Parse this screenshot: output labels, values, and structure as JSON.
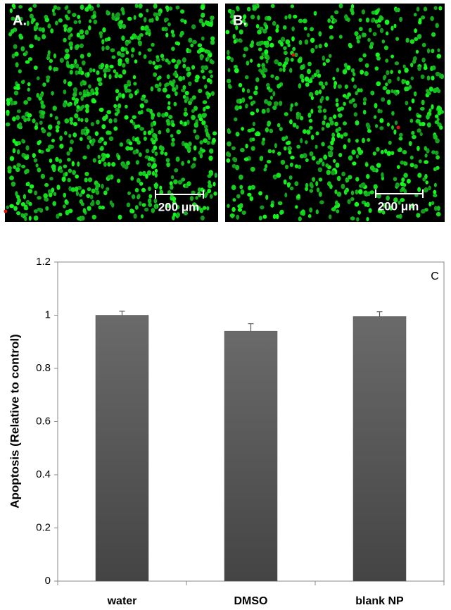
{
  "images": [
    {
      "label": "A.",
      "scale_bar": "200 μm"
    },
    {
      "label": "B.",
      "scale_bar": "200 μm"
    }
  ],
  "chart_data": {
    "type": "bar",
    "panel_label": "C",
    "ylabel": "Apoptosis (Relative to control)",
    "categories": [
      "water",
      "DMSO",
      "blank NP"
    ],
    "values": [
      1.0,
      0.94,
      0.995
    ],
    "errors": [
      0.015,
      0.028,
      0.018
    ],
    "color": "#555555",
    "ylim": [
      0,
      1.2
    ],
    "yticks": [
      0,
      0.2,
      0.4,
      0.6,
      0.8,
      1,
      1.2
    ]
  }
}
